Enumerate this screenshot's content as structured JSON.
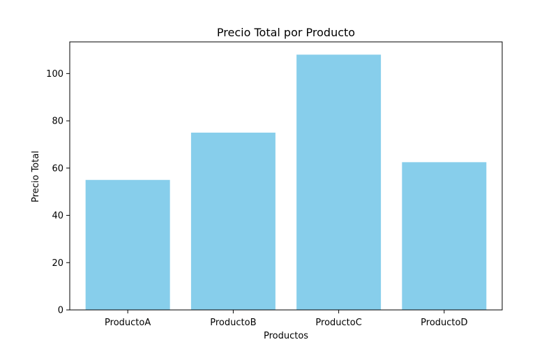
{
  "chart_data": {
    "type": "bar",
    "title": "Precio Total por Producto",
    "xlabel": "Productos",
    "ylabel": "Precio Total",
    "categories": [
      "ProductoA",
      "ProductoB",
      "ProductoC",
      "ProductoD"
    ],
    "values": [
      55,
      75,
      108,
      62.5
    ],
    "ylim": [
      0,
      113.4
    ],
    "yticks": [
      0,
      20,
      40,
      60,
      80,
      100
    ],
    "grid": false,
    "bar_color": "#87ceeb",
    "axis_color": "#000000"
  }
}
